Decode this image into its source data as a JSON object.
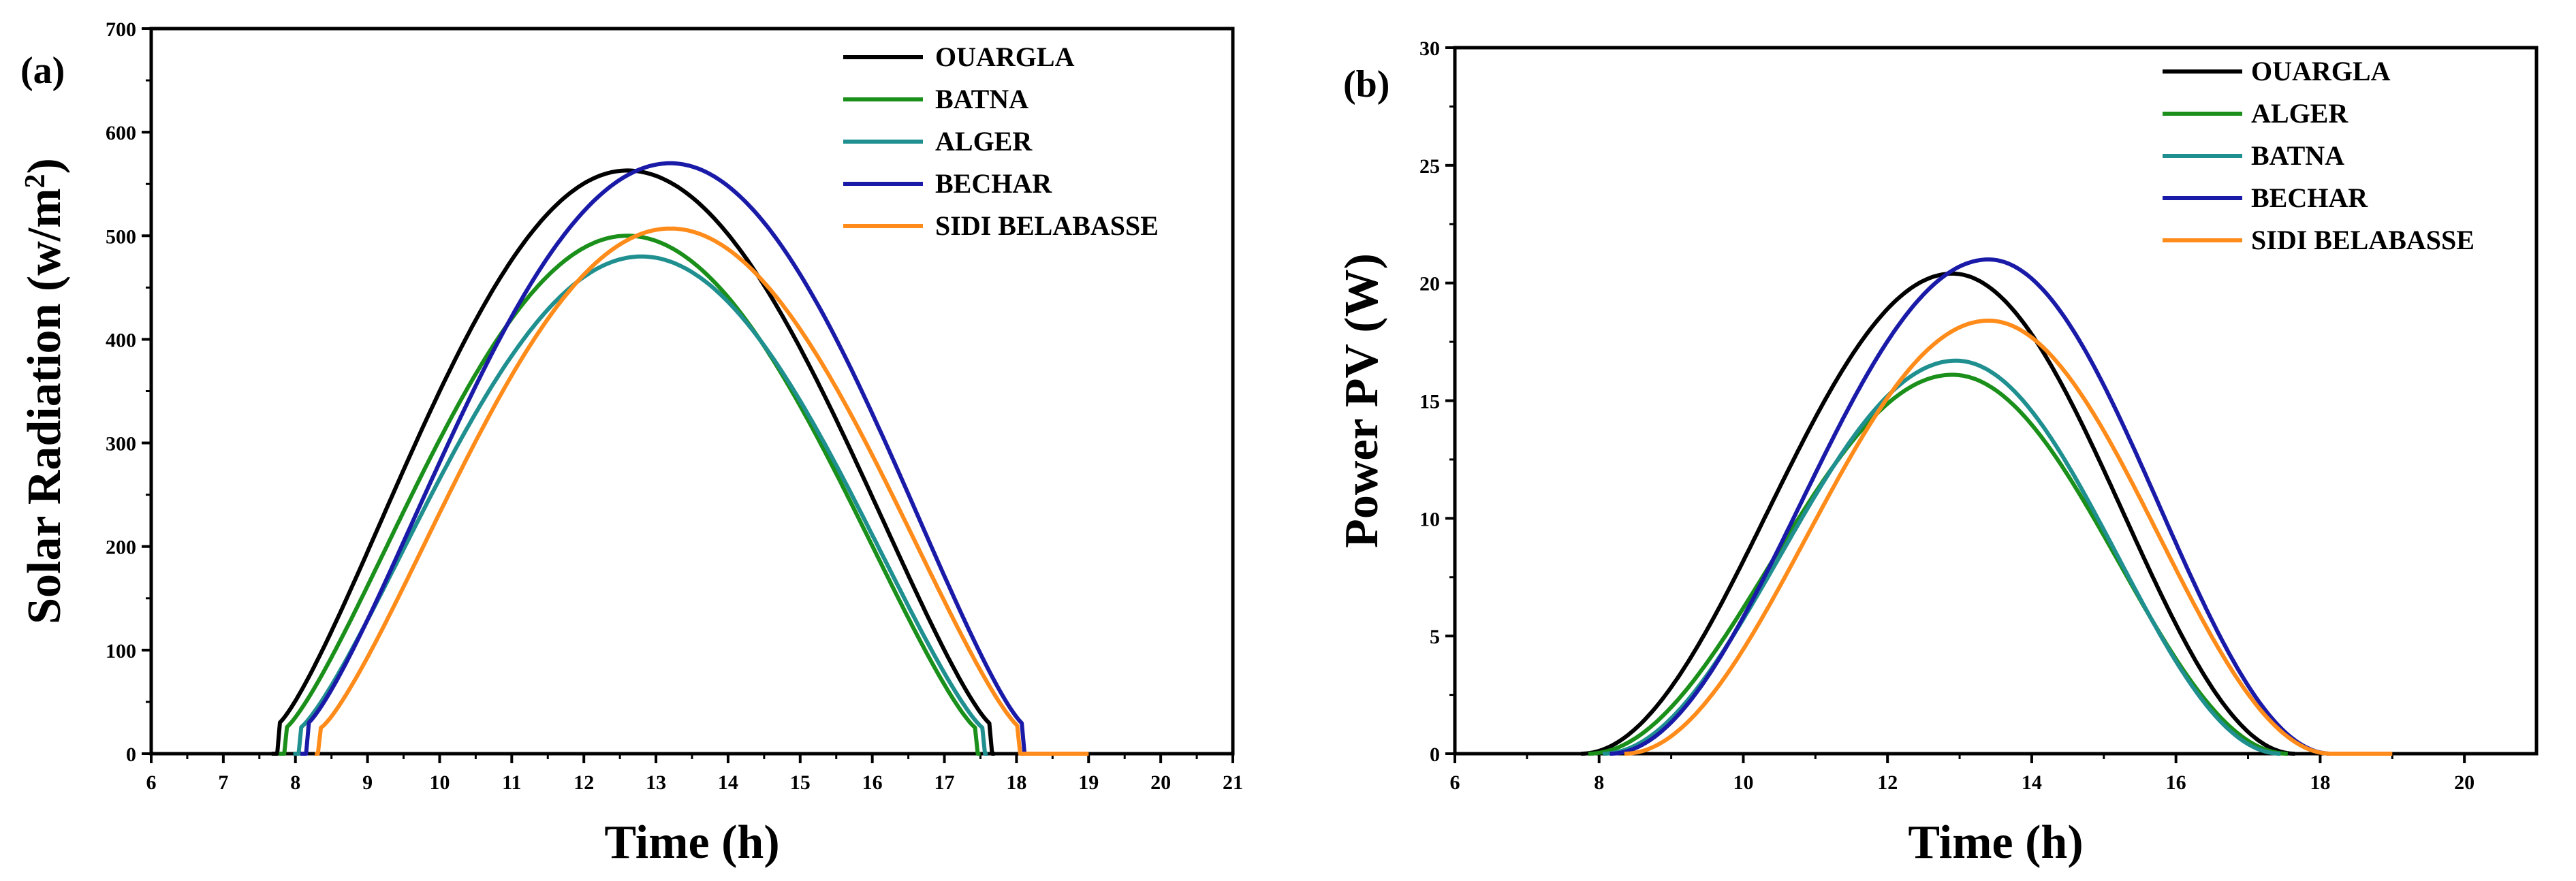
{
  "chart_data": [
    {
      "type": "line",
      "panel": "(a)",
      "title": "",
      "xlabel": "Time (h)",
      "ylabel": "Solar Radiation  (w/m",
      "ylabel_sup": "2",
      "ylabel_close": ")",
      "xlim": [
        6,
        21
      ],
      "ylim": [
        0,
        700
      ],
      "xticks": [
        6,
        7,
        8,
        9,
        10,
        11,
        12,
        13,
        14,
        15,
        16,
        17,
        18,
        19,
        20,
        21
      ],
      "yticks": [
        0,
        100,
        200,
        300,
        400,
        500,
        600,
        700
      ],
      "legend_position": "top-right",
      "series": [
        {
          "name": "OUARGLA",
          "color": "#000000",
          "sunrise": 7.75,
          "sunset": 17.65,
          "peak_t": 12.6,
          "peak": 563,
          "kink": 28
        },
        {
          "name": "BATNA",
          "color": "#1a8f1a",
          "sunrise": 7.85,
          "sunset": 17.45,
          "peak_t": 12.6,
          "peak": 500,
          "kink": 24
        },
        {
          "name": "ALGER",
          "color": "#1f8f8f",
          "sunrise": 8.05,
          "sunset": 17.55,
          "peak_t": 12.8,
          "peak": 480,
          "kink": 24
        },
        {
          "name": "BECHAR",
          "color": "#1a1aa8",
          "sunrise": 8.15,
          "sunset": 18.1,
          "peak_t": 13.2,
          "peak": 570,
          "kink": 28
        },
        {
          "name": "SIDI BELABASSE",
          "color": "#ff8c1a",
          "sunrise": 8.35,
          "sunset": 18.05,
          "peak_t": 13.2,
          "peak": 507,
          "kink": 25,
          "tail_to": 19.0
        }
      ]
    },
    {
      "type": "line",
      "panel": "(b)",
      "title": "",
      "xlabel": "Time (h)",
      "ylabel": "Power PV (W)",
      "xlim": [
        6,
        21
      ],
      "ylim": [
        0,
        30
      ],
      "xticks": [
        6,
        8,
        10,
        12,
        14,
        16,
        18,
        20
      ],
      "yticks": [
        0,
        5,
        10,
        15,
        20,
        25,
        30
      ],
      "legend_position": "top-right",
      "series": [
        {
          "name": "OUARGLA",
          "color": "#000000",
          "start": 7.75,
          "end": 17.65,
          "peak_t": 12.9,
          "peak": 20.4
        },
        {
          "name": "ALGER",
          "color": "#1a8f1a",
          "start": 7.85,
          "end": 17.55,
          "peak_t": 12.9,
          "peak": 16.1
        },
        {
          "name": "BATNA",
          "color": "#1f8f8f",
          "start": 8.05,
          "end": 17.45,
          "peak_t": 12.95,
          "peak": 16.7
        },
        {
          "name": "BECHAR",
          "color": "#1a1aa8",
          "start": 8.15,
          "end": 18.15,
          "peak_t": 13.4,
          "peak": 21.0
        },
        {
          "name": "SIDI BELABASSE",
          "color": "#ff8c1a",
          "start": 8.35,
          "end": 18.15,
          "peak_t": 13.4,
          "peak": 18.4,
          "tail_to": 19.0
        }
      ]
    }
  ]
}
